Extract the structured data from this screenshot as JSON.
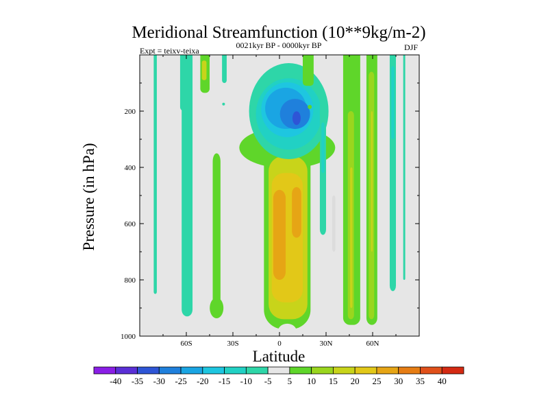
{
  "chart_data": {
    "type": "heatmap",
    "title": "Meridional Streamfunction (10**9kg/m-2)",
    "subtitle": "0021kyr BP - 0000kyr BP",
    "left_label": "Expt = teixv-teixa",
    "right_label": "DJF",
    "xlabel": "Latitude",
    "ylabel": "Pressure (in hPa)",
    "xlim": [
      -90,
      90
    ],
    "ylim": [
      1000,
      0
    ],
    "y_inverted": true,
    "x_ticks": [
      {
        "value": -60,
        "label": "60S"
      },
      {
        "value": -30,
        "label": "30S"
      },
      {
        "value": 0,
        "label": "0"
      },
      {
        "value": 30,
        "label": "30N"
      },
      {
        "value": 60,
        "label": "60N"
      }
    ],
    "y_ticks": [
      {
        "value": 200,
        "label": "200"
      },
      {
        "value": 400,
        "label": "400"
      },
      {
        "value": 600,
        "label": "600"
      },
      {
        "value": 800,
        "label": "800"
      },
      {
        "value": 1000,
        "label": "1000"
      }
    ],
    "background_color": "#e6e6e6",
    "colorbar": {
      "levels": [
        "-40",
        "-35",
        "-30",
        "-25",
        "-20",
        "-15",
        "-10",
        "-5",
        "5",
        "10",
        "15",
        "20",
        "25",
        "30",
        "35",
        "40"
      ],
      "colors": [
        "#8a1ee6",
        "#5a2fd6",
        "#2e55d6",
        "#1f80dc",
        "#1aa5e3",
        "#1ec6e0",
        "#21d1c4",
        "#2ed6a8",
        "#e6e6e6",
        "#5fd62a",
        "#9ad61e",
        "#c8d41a",
        "#e2c818",
        "#e6a515",
        "#e67d14",
        "#e0501a",
        "#d42a12"
      ]
    },
    "regions": [
      {
        "value": "-5..-10",
        "lat": [
          -81,
          -79
        ],
        "p": [
          0,
          850
        ]
      },
      {
        "value": "-5..-10",
        "lat": [
          -64,
          -56
        ],
        "p": [
          0,
          930
        ]
      },
      {
        "value": "5..10",
        "lat": [
          -51,
          -45
        ],
        "p": [
          0,
          135
        ]
      },
      {
        "value": "-5..-10",
        "lat": [
          -37,
          -34
        ],
        "p": [
          0,
          100
        ]
      },
      {
        "value": "5..10",
        "lat": [
          -43,
          -38
        ],
        "p": [
          350,
          920
        ]
      },
      {
        "value": "5..15",
        "lat": [
          -10,
          20
        ],
        "p": [
          300,
          975
        ]
      },
      {
        "value": "15..25",
        "lat": [
          -5,
          15
        ],
        "p": [
          420,
          880
        ]
      },
      {
        "value": "-5..-25",
        "lat": [
          -3,
          16
        ],
        "p": [
          60,
          330
        ]
      },
      {
        "value": "5..10",
        "lat": [
          15,
          22
        ],
        "p": [
          0,
          110
        ]
      },
      {
        "value": "-5..-10",
        "lat": [
          26,
          30
        ],
        "p": [
          160,
          640
        ]
      },
      {
        "value": "5..10",
        "lat": [
          41,
          52
        ],
        "p": [
          0,
          960
        ]
      },
      {
        "value": "5..10",
        "lat": [
          56,
          63
        ],
        "p": [
          0,
          960
        ]
      },
      {
        "value": "-5..-10",
        "lat": [
          71,
          75
        ],
        "p": [
          0,
          840
        ]
      },
      {
        "value": "-5",
        "lat": [
          80,
          81
        ],
        "p": [
          0,
          800
        ]
      }
    ]
  }
}
